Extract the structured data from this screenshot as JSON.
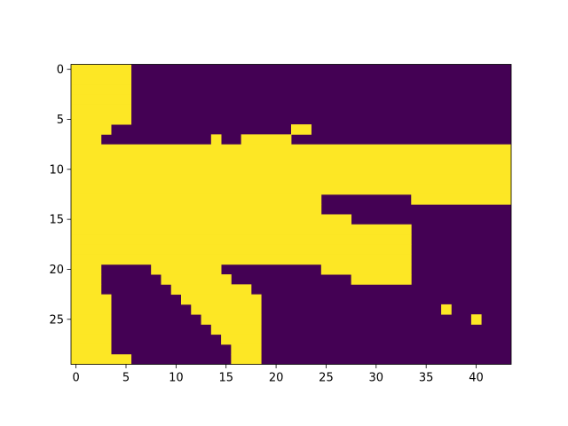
{
  "chart_data": {
    "type": "heatmap",
    "title": "",
    "xlabel": "",
    "ylabel": "",
    "colormap": "viridis",
    "colors": {
      "low": "#440154",
      "high": "#fde725"
    },
    "value_range": [
      0,
      1
    ],
    "n_rows": 30,
    "n_cols": 44,
    "xlim": [
      -0.5,
      43.5
    ],
    "ylim": [
      29.5,
      -0.5
    ],
    "y_axis_inverted": true,
    "grid": false,
    "legend": "none",
    "xticks": [
      0,
      5,
      10,
      15,
      20,
      25,
      30,
      35,
      40
    ],
    "yticks": [
      0,
      5,
      10,
      15,
      20,
      25
    ],
    "xtick_labels": [
      "0",
      "5",
      "10",
      "15",
      "20",
      "25",
      "30",
      "35",
      "40"
    ],
    "ytick_labels": [
      "0",
      "5",
      "10",
      "15",
      "20",
      "25"
    ],
    "high_value_cells_by_row": [
      [
        [
          0,
          5
        ]
      ],
      [
        [
          0,
          5
        ]
      ],
      [
        [
          0,
          5
        ]
      ],
      [
        [
          0,
          5
        ]
      ],
      [
        [
          0,
          5
        ]
      ],
      [
        [
          0,
          5
        ]
      ],
      [
        [
          0,
          3
        ],
        [
          22,
          23
        ]
      ],
      [
        [
          0,
          2
        ],
        [
          14,
          14
        ],
        [
          17,
          21
        ]
      ],
      [
        [
          0,
          43
        ]
      ],
      [
        [
          0,
          43
        ]
      ],
      [
        [
          0,
          43
        ]
      ],
      [
        [
          0,
          43
        ]
      ],
      [
        [
          0,
          43
        ]
      ],
      [
        [
          0,
          24
        ],
        [
          34,
          43
        ]
      ],
      [
        [
          0,
          24
        ]
      ],
      [
        [
          0,
          27
        ]
      ],
      [
        [
          0,
          33
        ]
      ],
      [
        [
          0,
          33
        ]
      ],
      [
        [
          0,
          33
        ]
      ],
      [
        [
          0,
          33
        ]
      ],
      [
        [
          0,
          2
        ],
        [
          8,
          14
        ],
        [
          25,
          33
        ]
      ],
      [
        [
          0,
          2
        ],
        [
          9,
          15
        ],
        [
          28,
          33
        ]
      ],
      [
        [
          0,
          2
        ],
        [
          10,
          17
        ]
      ],
      [
        [
          0,
          3
        ],
        [
          11,
          18
        ]
      ],
      [
        [
          0,
          3
        ],
        [
          12,
          18
        ],
        [
          37,
          37
        ]
      ],
      [
        [
          0,
          3
        ],
        [
          13,
          18
        ],
        [
          40,
          40
        ]
      ],
      [
        [
          0,
          3
        ],
        [
          14,
          18
        ]
      ],
      [
        [
          0,
          3
        ],
        [
          15,
          18
        ]
      ],
      [
        [
          0,
          3
        ],
        [
          16,
          18
        ]
      ],
      [
        [
          0,
          5
        ],
        [
          16,
          18
        ]
      ]
    ]
  }
}
